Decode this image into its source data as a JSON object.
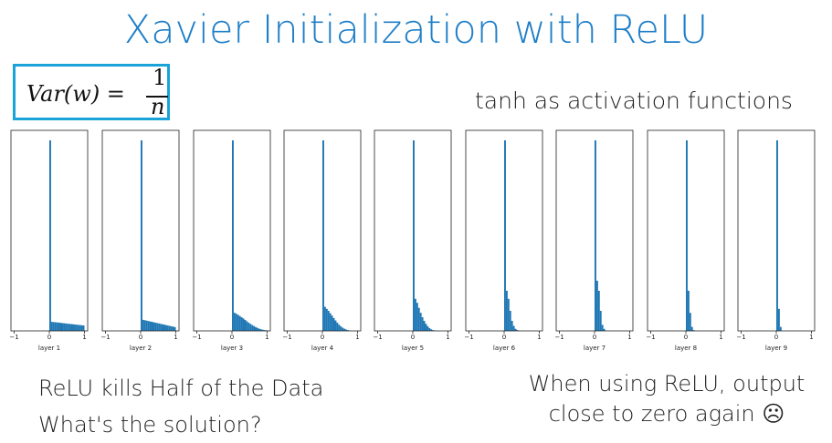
{
  "slide": {
    "title": "Xavier Initialization with ReLU",
    "formula_lhs": "Var(w) =",
    "formula_num": "1",
    "formula_den": "n",
    "subtitle": "tanh as activation functions",
    "left_lines": [
      "ReLU kills Half of the Data",
      "What's the solution?"
    ],
    "right_lines": [
      "When using ReLU, output",
      "close to zero again ☹"
    ]
  },
  "chart_data": [
    {
      "type": "histogram",
      "xlabel": "layer 1",
      "color": "#1f77b4",
      "xlim": [
        -1,
        1
      ],
      "xticks": [
        {
          "value": -1,
          "label": "−1"
        },
        0,
        1
      ],
      "ylim": [
        0,
        1
      ],
      "bins": [
        0,
        0.05,
        0.1,
        0.15,
        0.2,
        0.25,
        0.3,
        0.35,
        0.4,
        0.45,
        0.5,
        0.55,
        0.6,
        0.65,
        0.7,
        0.75,
        0.8,
        0.85,
        0.9,
        0.95,
        1
      ],
      "counts": [
        0.95,
        0.045,
        0.044,
        0.043,
        0.042,
        0.041,
        0.04,
        0.039,
        0.038,
        0.037,
        0.036,
        0.035,
        0.034,
        0.033,
        0.032,
        0.031,
        0.03,
        0.029,
        0.028,
        0.027
      ]
    },
    {
      "type": "histogram",
      "xlabel": "layer 2",
      "color": "#1f77b4",
      "xlim": [
        -1,
        1
      ],
      "xticks": [
        {
          "value": -1,
          "label": "−1"
        },
        0,
        1
      ],
      "ylim": [
        0,
        1
      ],
      "bins": [
        0,
        0.05,
        0.1,
        0.15,
        0.2,
        0.25,
        0.3,
        0.35,
        0.4,
        0.45,
        0.5,
        0.55,
        0.6,
        0.65,
        0.7,
        0.75,
        0.8,
        0.85,
        0.9,
        0.95,
        1
      ],
      "counts": [
        0.95,
        0.055,
        0.053,
        0.051,
        0.049,
        0.047,
        0.045,
        0.043,
        0.041,
        0.039,
        0.037,
        0.035,
        0.033,
        0.031,
        0.029,
        0.027,
        0.025,
        0.023,
        0.021,
        0.019
      ]
    },
    {
      "type": "histogram",
      "xlabel": "layer 3",
      "color": "#1f77b4",
      "xlim": [
        -1,
        1
      ],
      "xticks": [
        {
          "value": -1,
          "label": "−1"
        },
        0,
        1
      ],
      "ylim": [
        0,
        1
      ],
      "bins": [
        0,
        0.05,
        0.1,
        0.15,
        0.2,
        0.25,
        0.3,
        0.35,
        0.4,
        0.45,
        0.5,
        0.55,
        0.6,
        0.65,
        0.7,
        0.75,
        0.8,
        0.85,
        0.9,
        0.95,
        1
      ],
      "counts": [
        0.95,
        0.09,
        0.085,
        0.08,
        0.074,
        0.068,
        0.062,
        0.055,
        0.048,
        0.041,
        0.035,
        0.029,
        0.024,
        0.019,
        0.015,
        0.011,
        0.008,
        0.006,
        0.004,
        0.003
      ]
    },
    {
      "type": "histogram",
      "xlabel": "layer 4",
      "color": "#1f77b4",
      "xlim": [
        -1,
        1
      ],
      "xticks": [
        {
          "value": -1,
          "label": "−1"
        },
        0,
        1
      ],
      "ylim": [
        0,
        1
      ],
      "bins": [
        0,
        0.05,
        0.1,
        0.15,
        0.2,
        0.25,
        0.3,
        0.35,
        0.4,
        0.45,
        0.5,
        0.55,
        0.6,
        0.65,
        0.7,
        0.75,
        0.8,
        0.85,
        0.9,
        0.95,
        1
      ],
      "counts": [
        0.95,
        0.12,
        0.11,
        0.1,
        0.088,
        0.076,
        0.064,
        0.052,
        0.041,
        0.031,
        0.023,
        0.016,
        0.011,
        0.007,
        0.004,
        0.002,
        0.001,
        0,
        0,
        0
      ]
    },
    {
      "type": "histogram",
      "xlabel": "layer 5",
      "color": "#1f77b4",
      "xlim": [
        -1,
        1
      ],
      "xticks": [
        {
          "value": -1,
          "label": "−1"
        },
        0,
        1
      ],
      "ylim": [
        0,
        1
      ],
      "bins": [
        0,
        0.05,
        0.1,
        0.15,
        0.2,
        0.25,
        0.3,
        0.35,
        0.4,
        0.45,
        0.5,
        0.55,
        0.6,
        0.65,
        0.7,
        0.75,
        0.8,
        0.85,
        0.9,
        0.95,
        1
      ],
      "counts": [
        0.95,
        0.16,
        0.14,
        0.115,
        0.09,
        0.068,
        0.05,
        0.035,
        0.023,
        0.014,
        0.008,
        0.004,
        0.002,
        0.001,
        0,
        0,
        0,
        0,
        0,
        0
      ]
    },
    {
      "type": "histogram",
      "xlabel": "layer 6",
      "color": "#1f77b4",
      "xlim": [
        -1,
        1
      ],
      "xticks": [
        {
          "value": -1,
          "label": "−1"
        },
        0,
        1
      ],
      "ylim": [
        0,
        1
      ],
      "bins": [
        0,
        0.05,
        0.1,
        0.15,
        0.2,
        0.25,
        0.3,
        0.35,
        0.4,
        0.45,
        0.5,
        0.55,
        0.6,
        0.65,
        0.7,
        0.75,
        0.8,
        0.85,
        0.9,
        0.95,
        1
      ],
      "counts": [
        0.95,
        0.2,
        0.16,
        0.1,
        0.05,
        0.025,
        0.01,
        0.004,
        0.001,
        0,
        0,
        0,
        0,
        0,
        0,
        0,
        0,
        0,
        0,
        0
      ]
    },
    {
      "type": "histogram",
      "xlabel": "layer 7",
      "color": "#1f77b4",
      "xlim": [
        -1,
        1
      ],
      "xticks": [
        {
          "value": -1,
          "label": "−1"
        },
        0,
        1
      ],
      "ylim": [
        0,
        1
      ],
      "bins": [
        0,
        0.05,
        0.1,
        0.15,
        0.2,
        0.25,
        0.3,
        0.35,
        0.4,
        0.45,
        0.5,
        0.55,
        0.6,
        0.65,
        0.7,
        0.75,
        0.8,
        0.85,
        0.9,
        0.95,
        1
      ],
      "counts": [
        0.95,
        0.25,
        0.2,
        0.1,
        0.03,
        0.01,
        0.002,
        0,
        0,
        0,
        0,
        0,
        0,
        0,
        0,
        0,
        0,
        0,
        0,
        0
      ]
    },
    {
      "type": "histogram",
      "xlabel": "layer 8",
      "color": "#1f77b4",
      "xlim": [
        -1,
        1
      ],
      "xticks": [
        {
          "value": -1,
          "label": "−1"
        },
        0,
        1
      ],
      "ylim": [
        0,
        1
      ],
      "bins": [
        0,
        0.05,
        0.1,
        0.15,
        0.2,
        0.25,
        0.3,
        0.35,
        0.4,
        0.45,
        0.5,
        0.55,
        0.6,
        0.65,
        0.7,
        0.75,
        0.8,
        0.85,
        0.9,
        0.95,
        1
      ],
      "counts": [
        0.95,
        0.2,
        0.09,
        0.02,
        0.004,
        0,
        0,
        0,
        0,
        0,
        0,
        0,
        0,
        0,
        0,
        0,
        0,
        0,
        0,
        0
      ]
    },
    {
      "type": "histogram",
      "xlabel": "layer 9",
      "color": "#1f77b4",
      "xlim": [
        -1,
        1
      ],
      "xticks": [
        {
          "value": -1,
          "label": "−1"
        },
        0,
        1
      ],
      "ylim": [
        0,
        1
      ],
      "bins": [
        0,
        0.05,
        0.1,
        0.15,
        0.2,
        0.25,
        0.3,
        0.35,
        0.4,
        0.45,
        0.5,
        0.55,
        0.6,
        0.65,
        0.7,
        0.75,
        0.8,
        0.85,
        0.9,
        0.95,
        1
      ],
      "counts": [
        0.95,
        0.11,
        0.02,
        0,
        0,
        0,
        0,
        0,
        0,
        0,
        0,
        0,
        0,
        0,
        0,
        0,
        0,
        0,
        0,
        0
      ]
    }
  ]
}
